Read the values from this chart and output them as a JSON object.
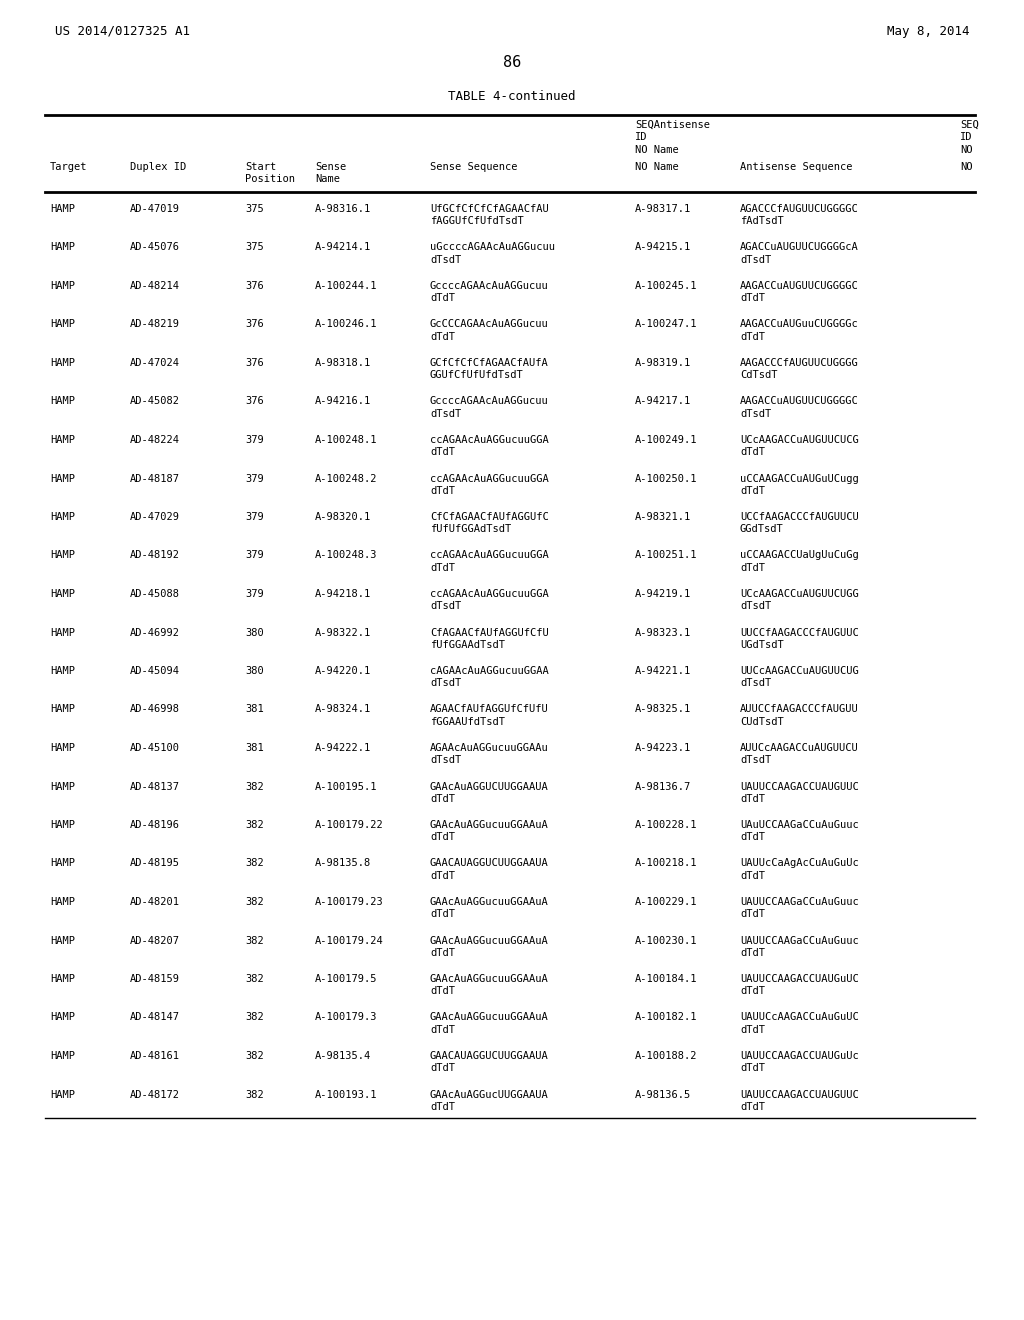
{
  "page_header_left": "US 2014/0127325 A1",
  "page_header_right": "May 8, 2014",
  "page_number": "86",
  "table_title": "TABLE 4-continued",
  "col_headers": [
    [
      "",
      "",
      "Start",
      "Sense",
      "",
      "SEQAntisense\nID\nNO Name",
      "",
      "SEQ\nID\nNO"
    ],
    [
      "Target",
      "Duplex ID",
      "Position",
      "Name",
      "Sense Sequence",
      "NO Name",
      "Antisense Sequence",
      "NO"
    ]
  ],
  "rows": [
    [
      "HAMP",
      "AD-47019",
      "375",
      "A-98316.1",
      "UfGCfCfCfCfAGAACfAU\nfAGGUfCfUfdTsdT",
      "A-98317.1",
      "AGACCCfAUGUUCUGGGGC\nfAdTsdT",
      ""
    ],
    [
      "HAMP",
      "AD-45076",
      "375",
      "A-94214.1",
      "uGccccAGAAcAuAGGucuu\ndTsdT",
      "A-94215.1",
      "AGACCuAUGUUCUGGGGcA\ndTsdT",
      ""
    ],
    [
      "HAMP",
      "AD-48214",
      "376",
      "A-100244.1",
      "GccccAGAAcAuAGGucuu\ndTdT",
      "A-100245.1",
      "AAGACCuAUGUUCUGGGGC\ndTdT",
      ""
    ],
    [
      "HAMP",
      "AD-48219",
      "376",
      "A-100246.1",
      "GcCCCAGAAcAuAGGucuu\ndTdT",
      "A-100247.1",
      "AAGACCuAUGuuCUGGGGc\ndTdT",
      ""
    ],
    [
      "HAMP",
      "AD-47024",
      "376",
      "A-98318.1",
      "GCfCfCfCfAGAACfAUfA\nGGUfCfUfUfdTsdT",
      "A-98319.1",
      "AAGACCCfAUGUUCUGGGG\nCdTsdT",
      ""
    ],
    [
      "HAMP",
      "AD-45082",
      "376",
      "A-94216.1",
      "GccccAGAAcAuAGGucuu\ndTsdT",
      "A-94217.1",
      "AAGACCuAUGUUCUGGGGC\ndTsdT",
      ""
    ],
    [
      "HAMP",
      "AD-48224",
      "379",
      "A-100248.1",
      "ccAGAAcAuAGGucuuGGA\ndTdT",
      "A-100249.1",
      "UCcAAGACCuAUGUUCUCG\ndTdT",
      ""
    ],
    [
      "HAMP",
      "AD-48187",
      "379",
      "A-100248.2",
      "ccAGAAcAuAGGucuuGGA\ndTdT",
      "A-100250.1",
      "uCCAAGACCuAUGuUCugg\ndTdT",
      ""
    ],
    [
      "HAMP",
      "AD-47029",
      "379",
      "A-98320.1",
      "CfCfAGAACfAUfAGGUfC\nfUfUfGGAdTsdT",
      "A-98321.1",
      "UCCfAAGACCCfAUGUUCU\nGGdTsdT",
      ""
    ],
    [
      "HAMP",
      "AD-48192",
      "379",
      "A-100248.3",
      "ccAGAAcAuAGGucuuGGA\ndTdT",
      "A-100251.1",
      "uCCAAGACCUaUgUuCuGg\ndTdT",
      ""
    ],
    [
      "HAMP",
      "AD-45088",
      "379",
      "A-94218.1",
      "ccAGAAcAuAGGucuuGGA\ndTsdT",
      "A-94219.1",
      "UCcAAGACCuAUGUUCUGG\ndTsdT",
      ""
    ],
    [
      "HAMP",
      "AD-46992",
      "380",
      "A-98322.1",
      "CfAGAACfAUfAGGUfCfU\nfUfGGAAdTsdT",
      "A-98323.1",
      "UUCCfAAGACCCfAUGUUC\nUGdTsdT",
      ""
    ],
    [
      "HAMP",
      "AD-45094",
      "380",
      "A-94220.1",
      "cAGAAcAuAGGucuuGGAA\ndTsdT",
      "A-94221.1",
      "UUCcAAGACCuAUGUUCUG\ndTsdT",
      ""
    ],
    [
      "HAMP",
      "AD-46998",
      "381",
      "A-98324.1",
      "AGAACfAUfAGGUfCfUfU\nfGGAAUfdTsdT",
      "A-98325.1",
      "AUUCCfAAGACCCfAUGUU\nCUdTsdT",
      ""
    ],
    [
      "HAMP",
      "AD-45100",
      "381",
      "A-94222.1",
      "AGAAcAuAGGucuuGGAAu\ndTsdT",
      "A-94223.1",
      "AUUCcAAGACCuAUGUUCU\ndTsdT",
      ""
    ],
    [
      "HAMP",
      "AD-48137",
      "382",
      "A-100195.1",
      "GAAcAuAGGUCUUGGAAUA\ndTdT",
      "A-98136.7",
      "UAUUCCAAGACCUAUGUUC\ndTdT",
      ""
    ],
    [
      "HAMP",
      "AD-48196",
      "382",
      "A-100179.22",
      "GAAcAuAGGucuuGGAAuA\ndTdT",
      "A-100228.1",
      "UAuUCCAAGaCCuAuGuuc\ndTdT",
      ""
    ],
    [
      "HAMP",
      "AD-48195",
      "382",
      "A-98135.8",
      "GAACAUAGGUCUUGGAAUA\ndTdT",
      "A-100218.1",
      "UAUUcCaAgAcCuAuGuUc\ndTdT",
      ""
    ],
    [
      "HAMP",
      "AD-48201",
      "382",
      "A-100179.23",
      "GAAcAuAGGucuuGGAAuA\ndTdT",
      "A-100229.1",
      "UAUUCCAAGaCCuAuGuuc\ndTdT",
      ""
    ],
    [
      "HAMP",
      "AD-48207",
      "382",
      "A-100179.24",
      "GAAcAuAGGucuuGGAAuA\ndTdT",
      "A-100230.1",
      "UAUUCCAAGaCCuAuGuuc\ndTdT",
      ""
    ],
    [
      "HAMP",
      "AD-48159",
      "382",
      "A-100179.5",
      "GAAcAuAGGucuuGGAAuA\ndTdT",
      "A-100184.1",
      "UAUUCCAAGACCUAUGuUC\ndTdT",
      ""
    ],
    [
      "HAMP",
      "AD-48147",
      "382",
      "A-100179.3",
      "GAAcAuAGGucuuGGAAuA\ndTdT",
      "A-100182.1",
      "UAUUCcAAGACCuAuGuUC\ndTdT",
      ""
    ],
    [
      "HAMP",
      "AD-48161",
      "382",
      "A-98135.4",
      "GAACAUAGGUCUUGGAAUA\ndTdT",
      "A-100188.2",
      "UAUUCCAAGACCUAUGuUc\ndTdT",
      ""
    ],
    [
      "HAMP",
      "AD-48172",
      "382",
      "A-100193.1",
      "GAAcAuAGGucUUGGAAUA\ndTdT",
      "A-98136.5",
      "UAUUCCAAGACCUAUGUUC\ndTdT",
      ""
    ]
  ],
  "background_color": "#ffffff",
  "text_color": "#000000",
  "font_size": 7.5,
  "header_font_size": 7.5
}
